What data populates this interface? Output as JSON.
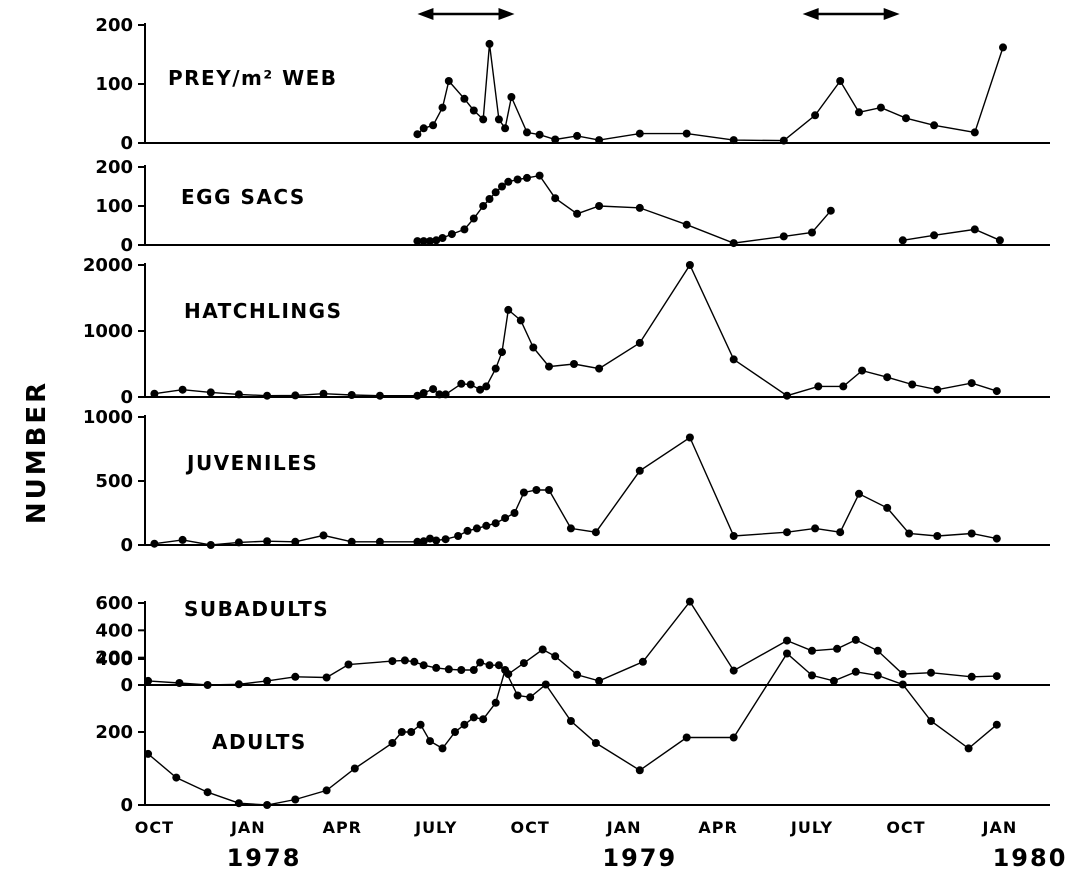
{
  "chart_data": {
    "type": "line",
    "title": "",
    "ylabel": "NUMBER",
    "xlabel": "",
    "x_tick_labels": [
      "OCT",
      "JAN",
      "APR",
      "JULY",
      "OCT",
      "JAN",
      "APR",
      "JULY",
      "OCT",
      "JAN"
    ],
    "x_tick_months": [
      0,
      3,
      6,
      9,
      12,
      15,
      18,
      21,
      24,
      27
    ],
    "year_labels": [
      {
        "text": "1978",
        "month": 3.5
      },
      {
        "text": "1979",
        "month": 15.5
      },
      {
        "text": "1980",
        "month": 28.2
      }
    ],
    "x_range_months": [
      -0.3,
      28.6
    ],
    "arrows": [
      [
        8.4,
        11.5
      ],
      [
        20.7,
        23.8
      ]
    ],
    "panels": [
      {
        "label": "PREY/m² WEB",
        "ylim": [
          0,
          200
        ],
        "yticks": [
          0,
          100,
          200
        ],
        "segments": [
          [
            [
              8.4,
              15
            ],
            [
              8.6,
              25
            ],
            [
              8.9,
              30
            ],
            [
              9.2,
              60
            ],
            [
              9.4,
              105
            ],
            [
              9.9,
              75
            ],
            [
              10.2,
              55
            ],
            [
              10.5,
              40
            ],
            [
              10.7,
              168
            ],
            [
              11.0,
              40
            ],
            [
              11.2,
              25
            ],
            [
              11.4,
              78
            ],
            [
              11.9,
              18
            ],
            [
              12.3,
              14
            ],
            [
              12.8,
              6
            ],
            [
              13.5,
              12
            ],
            [
              14.2,
              5
            ],
            [
              15.5,
              16
            ],
            [
              17.0,
              16
            ],
            [
              18.5,
              5
            ],
            [
              20.1,
              4
            ],
            [
              21.1,
              47
            ],
            [
              21.9,
              105
            ],
            [
              22.5,
              52
            ],
            [
              23.2,
              60
            ],
            [
              24.0,
              42
            ],
            [
              24.9,
              30
            ],
            [
              26.2,
              18
            ],
            [
              27.1,
              162
            ]
          ]
        ]
      },
      {
        "label": "EGG SACS",
        "ylim": [
          0,
          200
        ],
        "yticks": [
          0,
          100,
          200
        ],
        "segments": [
          [
            [
              8.4,
              10
            ],
            [
              8.6,
              10
            ],
            [
              8.8,
              10
            ],
            [
              9.0,
              12
            ],
            [
              9.2,
              18
            ],
            [
              9.5,
              28
            ],
            [
              9.9,
              40
            ],
            [
              10.2,
              68
            ],
            [
              10.5,
              100
            ],
            [
              10.7,
              118
            ],
            [
              10.9,
              135
            ],
            [
              11.1,
              150
            ],
            [
              11.3,
              162
            ],
            [
              11.6,
              168
            ],
            [
              11.9,
              172
            ],
            [
              12.3,
              178
            ],
            [
              12.8,
              120
            ],
            [
              13.5,
              80
            ],
            [
              14.2,
              100
            ],
            [
              15.5,
              95
            ],
            [
              17.0,
              52
            ],
            [
              18.5,
              5
            ],
            [
              20.1,
              22
            ],
            [
              21.0,
              32
            ],
            [
              21.6,
              88
            ]
          ],
          [
            [
              23.9,
              12
            ],
            [
              24.9,
              25
            ],
            [
              26.2,
              40
            ],
            [
              27.0,
              12
            ]
          ]
        ]
      },
      {
        "label": "HATCHLINGS",
        "ylim": [
          0,
          2000
        ],
        "yticks": [
          0,
          1000,
          2000
        ],
        "segments": [
          [
            [
              0.0,
              50
            ],
            [
              0.9,
              110
            ],
            [
              1.8,
              70
            ],
            [
              2.7,
              40
            ],
            [
              3.6,
              20
            ],
            [
              4.5,
              25
            ],
            [
              5.4,
              50
            ],
            [
              6.3,
              30
            ],
            [
              7.2,
              20
            ],
            [
              8.4,
              20
            ],
            [
              8.6,
              60
            ],
            [
              8.9,
              120
            ],
            [
              9.1,
              40
            ],
            [
              9.3,
              40
            ],
            [
              9.8,
              200
            ],
            [
              10.1,
              190
            ],
            [
              10.4,
              110
            ],
            [
              10.6,
              160
            ],
            [
              10.9,
              430
            ],
            [
              11.1,
              680
            ],
            [
              11.3,
              1320
            ],
            [
              11.7,
              1160
            ],
            [
              12.1,
              750
            ],
            [
              12.6,
              460
            ],
            [
              13.4,
              500
            ],
            [
              14.2,
              430
            ],
            [
              15.5,
              820
            ],
            [
              17.1,
              2000
            ],
            [
              18.5,
              570
            ],
            [
              20.2,
              20
            ],
            [
              21.2,
              160
            ],
            [
              22.0,
              160
            ],
            [
              22.6,
              400
            ],
            [
              23.4,
              300
            ],
            [
              24.2,
              190
            ],
            [
              25.0,
              110
            ],
            [
              26.1,
              210
            ],
            [
              26.9,
              90
            ]
          ]
        ]
      },
      {
        "label": "JUVENILES",
        "ylim": [
          0,
          1000
        ],
        "yticks": [
          0,
          500,
          1000
        ],
        "segments": [
          [
            [
              0.0,
              10
            ],
            [
              0.9,
              40
            ],
            [
              1.8,
              0
            ],
            [
              2.7,
              20
            ],
            [
              3.6,
              30
            ],
            [
              4.5,
              25
            ],
            [
              5.4,
              75
            ],
            [
              6.3,
              25
            ],
            [
              7.2,
              25
            ],
            [
              8.4,
              25
            ],
            [
              8.6,
              30
            ],
            [
              8.8,
              50
            ],
            [
              9.0,
              35
            ],
            [
              9.3,
              45
            ],
            [
              9.7,
              70
            ],
            [
              10.0,
              110
            ],
            [
              10.3,
              130
            ],
            [
              10.6,
              150
            ],
            [
              10.9,
              170
            ],
            [
              11.2,
              210
            ],
            [
              11.5,
              250
            ],
            [
              11.8,
              410
            ],
            [
              12.2,
              430
            ],
            [
              12.6,
              430
            ],
            [
              13.3,
              130
            ],
            [
              14.1,
              100
            ],
            [
              15.5,
              580
            ],
            [
              17.1,
              840
            ],
            [
              18.5,
              70
            ],
            [
              20.2,
              100
            ],
            [
              21.1,
              130
            ],
            [
              21.9,
              100
            ],
            [
              22.5,
              400
            ],
            [
              23.4,
              290
            ],
            [
              24.1,
              90
            ],
            [
              25.0,
              70
            ],
            [
              26.1,
              90
            ],
            [
              26.9,
              50
            ]
          ]
        ]
      },
      {
        "label": "SUBADULTS",
        "ylim": [
          0,
          600
        ],
        "yticks": [
          0,
          200,
          400,
          600
        ],
        "segments": [
          [
            [
              -0.2,
              30
            ],
            [
              0.8,
              15
            ],
            [
              1.7,
              0
            ],
            [
              2.7,
              5
            ],
            [
              3.6,
              30
            ],
            [
              4.5,
              60
            ],
            [
              5.5,
              55
            ],
            [
              6.2,
              150
            ],
            [
              7.6,
              175
            ],
            [
              8.0,
              180
            ],
            [
              8.3,
              170
            ],
            [
              8.6,
              145
            ],
            [
              9.0,
              125
            ],
            [
              9.4,
              115
            ],
            [
              9.8,
              110
            ],
            [
              10.2,
              110
            ],
            [
              10.4,
              165
            ],
            [
              10.7,
              145
            ],
            [
              11.0,
              145
            ],
            [
              11.3,
              80
            ],
            [
              11.8,
              160
            ],
            [
              12.4,
              260
            ],
            [
              12.8,
              210
            ],
            [
              13.5,
              75
            ],
            [
              14.2,
              30
            ],
            [
              15.6,
              170
            ],
            [
              17.1,
              610
            ],
            [
              18.5,
              105
            ],
            [
              20.2,
              325
            ],
            [
              21.0,
              250
            ],
            [
              21.8,
              265
            ],
            [
              22.4,
              330
            ],
            [
              23.1,
              250
            ],
            [
              23.9,
              80
            ],
            [
              24.8,
              90
            ],
            [
              26.1,
              60
            ],
            [
              26.9,
              65
            ]
          ]
        ]
      },
      {
        "label": "ADULTS",
        "ylim": [
          0,
          400
        ],
        "yticks": [
          0,
          200,
          400
        ],
        "segments": [
          [
            [
              -0.2,
              140
            ],
            [
              0.7,
              75
            ],
            [
              1.7,
              35
            ],
            [
              2.7,
              5
            ],
            [
              3.6,
              0
            ],
            [
              4.5,
              15
            ],
            [
              5.5,
              40
            ],
            [
              6.4,
              100
            ],
            [
              7.6,
              170
            ],
            [
              7.9,
              200
            ],
            [
              8.2,
              200
            ],
            [
              8.5,
              220
            ],
            [
              8.8,
              175
            ],
            [
              9.2,
              155
            ],
            [
              9.6,
              200
            ],
            [
              9.9,
              220
            ],
            [
              10.2,
              240
            ],
            [
              10.5,
              235
            ],
            [
              10.9,
              280
            ],
            [
              11.2,
              370
            ],
            [
              11.6,
              300
            ],
            [
              12.0,
              295
            ],
            [
              12.5,
              330
            ],
            [
              13.3,
              230
            ],
            [
              14.1,
              170
            ],
            [
              15.5,
              95
            ],
            [
              17.0,
              185
            ],
            [
              18.5,
              185
            ],
            [
              20.2,
              415
            ],
            [
              21.0,
              355
            ],
            [
              21.7,
              340
            ],
            [
              22.4,
              365
            ],
            [
              23.1,
              355
            ],
            [
              23.9,
              330
            ],
            [
              24.8,
              230
            ],
            [
              26.0,
              155
            ],
            [
              26.9,
              220
            ]
          ]
        ]
      }
    ]
  }
}
